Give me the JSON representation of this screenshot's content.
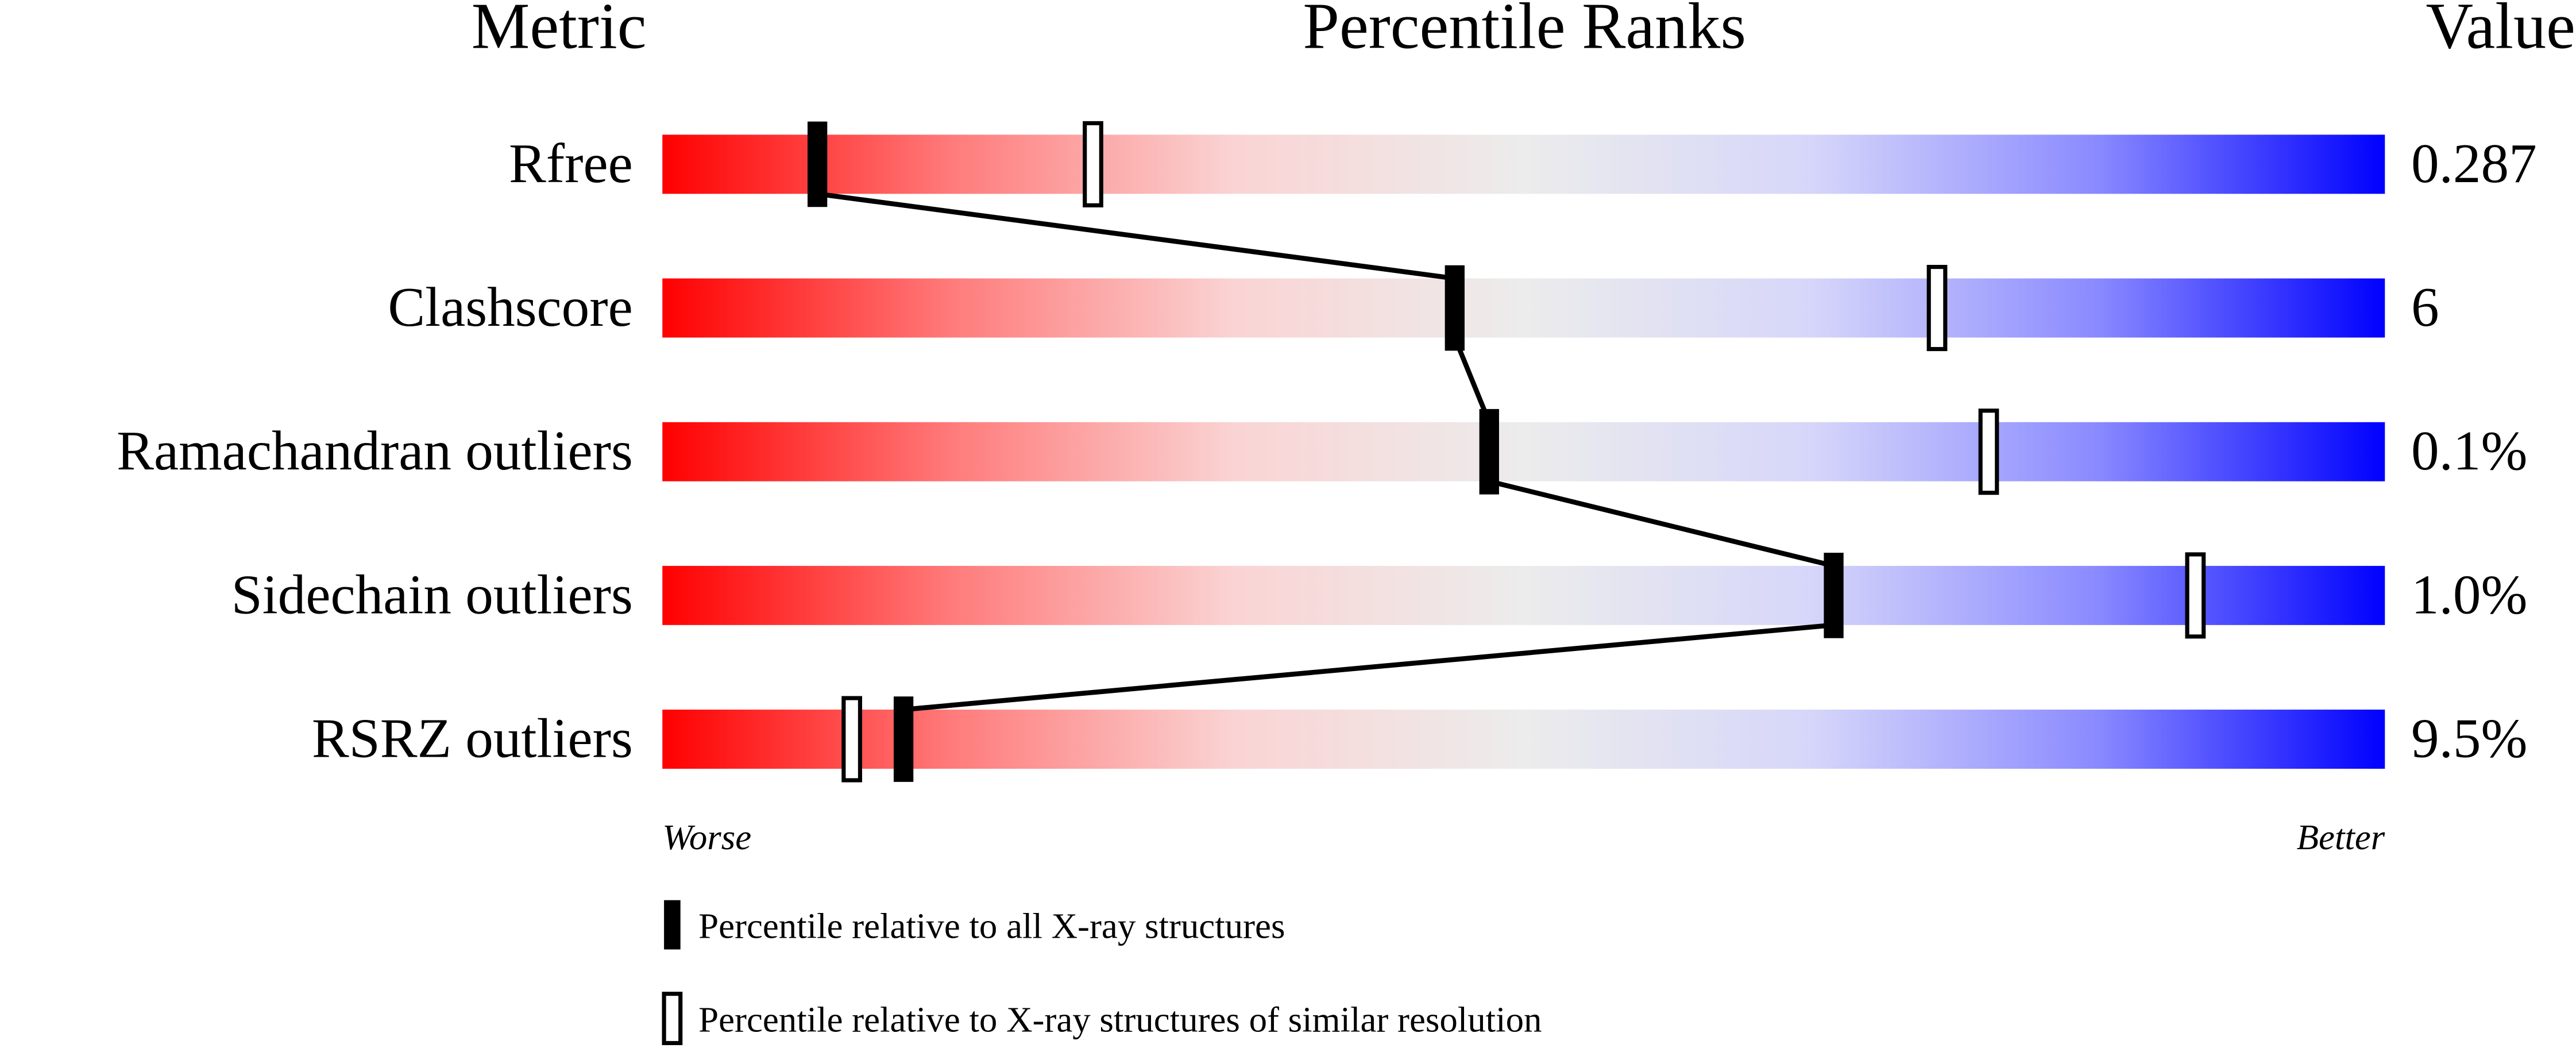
{
  "chart_data": {
    "type": "percentile-slider",
    "headers": [
      "Metric",
      "Percentile Ranks",
      "Value"
    ],
    "categories": [
      "Rfree",
      "Clashscore",
      "Ramachandran outliers",
      "Sidechain outliers",
      "RSRZ outliers"
    ],
    "metric_values": [
      "0.287",
      "6",
      "0.1%",
      "1.0%",
      "9.5%"
    ],
    "xlim": [
      0,
      100
    ],
    "worse_label": "Worse",
    "better_label": "Better",
    "gradient": [
      "#ff0000",
      "#ff7a7a",
      "#fad4d4",
      "#ececec",
      "#d6d6fa",
      "#8a8aff",
      "#0000ff"
    ],
    "series": [
      {
        "name": "Percentile relative to all X-ray structures",
        "color": "#000000",
        "style": "filled",
        "connected": true,
        "values": [
          9,
          46,
          48,
          68,
          14
        ]
      },
      {
        "name": "Percentile relative to X-ray structures of similar resolution",
        "color": "#000000",
        "style": "open",
        "connected": false,
        "values": [
          25,
          74,
          77,
          89,
          11
        ]
      }
    ]
  }
}
